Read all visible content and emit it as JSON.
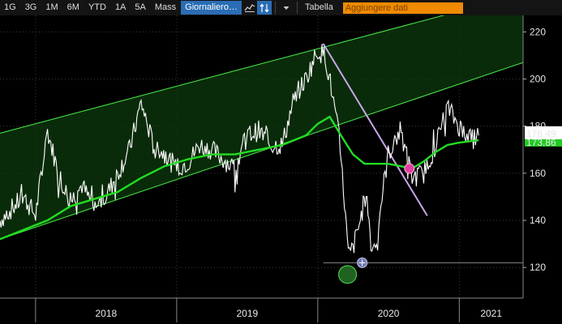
{
  "toolbar": {
    "ranges": [
      "1G",
      "3G",
      "1M",
      "6M",
      "YTD",
      "1A",
      "5A",
      "Mass"
    ],
    "frequency": "Giornaliero",
    "table_label": "Tabella",
    "add_data_placeholder": "Aggiungere dati"
  },
  "chart_data": {
    "type": "line",
    "title": "",
    "xlabel": "",
    "ylabel": "",
    "x_ticks": [
      "2018",
      "2019",
      "2020",
      "2021"
    ],
    "y_ticks": [
      120,
      140,
      160,
      180,
      200,
      220
    ],
    "ylim": [
      107,
      227
    ],
    "xlim": [
      "2017-10-01",
      "2021-06-15"
    ],
    "last_price": "176.49",
    "moving_average_last": "173.86",
    "grid": true,
    "colors": {
      "price": "#ffffff",
      "moving_average": "#22dd22",
      "channel": "#44dd44",
      "trend_line": "#c9a6e8",
      "low_marker": "#3ab53a",
      "cross_marker": "#e040a0",
      "price_label_bg": "#ffffff",
      "ma_label_bg": "#22cc22"
    },
    "series": [
      {
        "key": "price",
        "x": [
          "2017-10-01",
          "2017-11-01",
          "2017-12-01",
          "2018-01-01",
          "2018-02-01",
          "2018-03-01",
          "2018-04-01",
          "2018-05-01",
          "2018-06-01",
          "2018-07-01",
          "2018-08-01",
          "2018-09-01",
          "2018-10-01",
          "2018-11-01",
          "2018-12-01",
          "2019-01-01",
          "2019-02-01",
          "2019-03-01",
          "2019-04-01",
          "2019-05-01",
          "2019-06-01",
          "2019-07-01",
          "2019-08-01",
          "2019-09-01",
          "2019-10-01",
          "2019-11-01",
          "2019-12-01",
          "2020-01-01",
          "2020-01-20",
          "2020-02-05",
          "2020-02-25",
          "2020-03-10",
          "2020-03-20",
          "2020-04-01",
          "2020-04-20",
          "2020-05-05",
          "2020-05-20",
          "2020-06-01",
          "2020-06-15",
          "2020-07-01",
          "2020-08-01",
          "2020-09-01",
          "2020-10-01",
          "2020-11-01",
          "2020-12-01",
          "2021-01-01",
          "2021-02-01",
          "2021-02-20"
        ],
        "y": [
          140,
          145,
          150,
          142,
          178,
          160,
          148,
          155,
          145,
          150,
          160,
          170,
          190,
          172,
          168,
          162,
          165,
          172,
          170,
          166,
          162,
          176,
          178,
          172,
          172,
          192,
          200,
          212,
          210,
          196,
          175,
          148,
          125,
          128,
          140,
          152,
          127,
          132,
          150,
          168,
          178,
          158,
          160,
          172,
          188,
          180,
          174,
          176
        ]
      },
      {
        "key": "moving_average",
        "x": [
          "2017-10-01",
          "2017-12-01",
          "2018-02-01",
          "2018-04-01",
          "2018-06-01",
          "2018-08-01",
          "2018-10-01",
          "2018-12-01",
          "2019-02-01",
          "2019-04-01",
          "2019-06-01",
          "2019-08-01",
          "2019-10-01",
          "2019-12-01",
          "2020-01-01",
          "2020-02-01",
          "2020-03-01",
          "2020-04-01",
          "2020-05-01",
          "2020-06-01",
          "2020-07-01",
          "2020-08-01",
          "2020-09-01",
          "2020-10-01",
          "2020-11-01",
          "2020-12-01",
          "2021-01-01",
          "2021-02-20"
        ],
        "y": [
          132,
          136,
          140,
          146,
          149,
          152,
          158,
          163,
          166,
          168,
          168,
          170,
          172,
          176,
          181,
          184,
          176,
          168,
          164,
          164,
          164,
          163,
          162,
          165,
          169,
          172,
          173,
          174
        ]
      },
      {
        "key": "channel-upper",
        "x": [
          "2017-10-01",
          "2021-06-15"
        ],
        "y": [
          177,
          236
        ]
      },
      {
        "key": "channel-lower",
        "x": [
          "2017-10-01",
          "2021-06-15"
        ],
        "y": [
          132,
          207
        ]
      },
      {
        "key": "trend-line",
        "x": [
          "2020-01-15",
          "2020-10-10"
        ],
        "y": [
          215,
          142
        ]
      },
      {
        "key": "support-line",
        "x": [
          "2020-01-15",
          "2021-06-15"
        ],
        "y": [
          122,
          122
        ]
      }
    ],
    "markers": [
      {
        "key": "low-marker",
        "x": "2020-03-18",
        "y": 117
      },
      {
        "key": "cross-marker",
        "x": "2020-04-25",
        "y": 122
      },
      {
        "key": "intersection-marker",
        "x": "2020-08-25",
        "y": 162
      }
    ]
  }
}
